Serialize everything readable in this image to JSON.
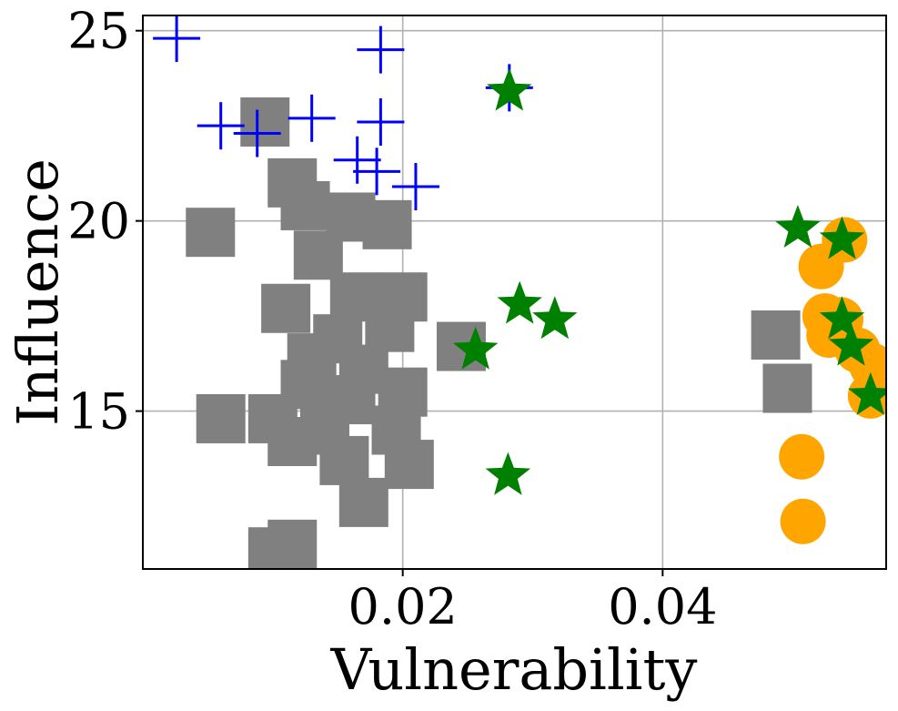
{
  "chart_data": {
    "type": "scatter",
    "title": "",
    "xlabel": "Vulnerability",
    "ylabel": "Influence",
    "xlim": [
      0.0,
      0.0572
    ],
    "ylim": [
      10.85,
      25.4
    ],
    "grid": true,
    "legend": "none",
    "xticks": [
      0.02,
      0.04
    ],
    "xtick_labels": [
      "0.02",
      "0.04"
    ],
    "yticks": [
      15,
      20,
      25
    ],
    "ytick_labels": [
      "15",
      "20",
      "25"
    ],
    "series": [
      {
        "name": "gray squares",
        "marker": "square",
        "color": "#808080",
        "points": [
          [
            0.0094,
            22.6
          ],
          [
            0.0115,
            21.0
          ],
          [
            0.0125,
            20.4
          ],
          [
            0.0052,
            19.7
          ],
          [
            0.016,
            20.1
          ],
          [
            0.0188,
            19.9
          ],
          [
            0.0135,
            19.1
          ],
          [
            0.0163,
            18.0
          ],
          [
            0.02,
            18.0
          ],
          [
            0.011,
            17.7
          ],
          [
            0.019,
            17.2
          ],
          [
            0.015,
            16.9
          ],
          [
            0.0245,
            16.7
          ],
          [
            0.013,
            16.4
          ],
          [
            0.017,
            16.1
          ],
          [
            0.0125,
            15.7
          ],
          [
            0.02,
            15.5
          ],
          [
            0.016,
            15.3
          ],
          [
            0.006,
            14.8
          ],
          [
            0.01,
            14.8
          ],
          [
            0.014,
            14.5
          ],
          [
            0.0195,
            14.5
          ],
          [
            0.0115,
            14.2
          ],
          [
            0.0155,
            13.7
          ],
          [
            0.0205,
            13.6
          ],
          [
            0.017,
            12.6
          ],
          [
            0.01,
            11.3
          ],
          [
            0.0115,
            11.5
          ],
          [
            0.0487,
            17.0
          ],
          [
            0.0496,
            15.6
          ]
        ]
      },
      {
        "name": "blue plus",
        "marker": "plus",
        "color": "#0000ff",
        "points": [
          [
            0.0026,
            24.8
          ],
          [
            0.0183,
            24.5
          ],
          [
            0.006,
            22.5
          ],
          [
            0.0088,
            22.3
          ],
          [
            0.013,
            22.7
          ],
          [
            0.0165,
            21.6
          ],
          [
            0.0183,
            22.6
          ],
          [
            0.018,
            21.3
          ],
          [
            0.021,
            20.9
          ],
          [
            0.0282,
            23.5
          ]
        ]
      },
      {
        "name": "orange circles",
        "marker": "circle",
        "color": "#ffa500",
        "points": [
          [
            0.054,
            19.5
          ],
          [
            0.0522,
            18.8
          ],
          [
            0.0525,
            17.5
          ],
          [
            0.0537,
            17.4
          ],
          [
            0.0528,
            17.0
          ],
          [
            0.055,
            16.6
          ],
          [
            0.0561,
            16.2
          ],
          [
            0.056,
            15.4
          ],
          [
            0.0507,
            13.8
          ],
          [
            0.0508,
            12.1
          ]
        ]
      },
      {
        "name": "green stars",
        "marker": "star",
        "color": "#008000",
        "points": [
          [
            0.0282,
            23.4
          ],
          [
            0.029,
            17.8
          ],
          [
            0.0317,
            17.4
          ],
          [
            0.0256,
            16.6
          ],
          [
            0.0281,
            13.3
          ],
          [
            0.0504,
            19.8
          ],
          [
            0.0538,
            19.5
          ],
          [
            0.0538,
            17.4
          ],
          [
            0.0545,
            16.7
          ],
          [
            0.056,
            15.4
          ]
        ]
      }
    ]
  }
}
